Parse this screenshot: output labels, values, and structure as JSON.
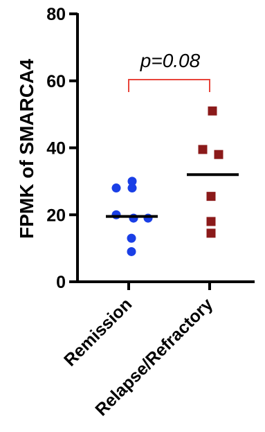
{
  "chart_data": {
    "type": "scatter",
    "title": "",
    "ylabel": "FPMK of SMARCA4",
    "xlabel": "",
    "ylim": [
      0,
      80
    ],
    "yticks": [
      "0",
      "20",
      "40",
      "60",
      "80"
    ],
    "categories": [
      "Remission",
      "Relapse/Refractory"
    ],
    "series": [
      {
        "category": "Remission",
        "marker": "circle",
        "color": "#1a3fe6",
        "values": [
          30,
          28,
          28,
          20,
          19,
          19,
          13,
          9
        ],
        "median": 19.5
      },
      {
        "category": "Relapse/Refractory",
        "marker": "square",
        "color": "#8b1a1a",
        "values": [
          51,
          39.5,
          38,
          25.5,
          18,
          14.5
        ],
        "median": 32
      }
    ],
    "annotation": {
      "text": "p=0.08",
      "bracket_color": "#e8443a"
    },
    "grid": false,
    "legend": "none"
  }
}
